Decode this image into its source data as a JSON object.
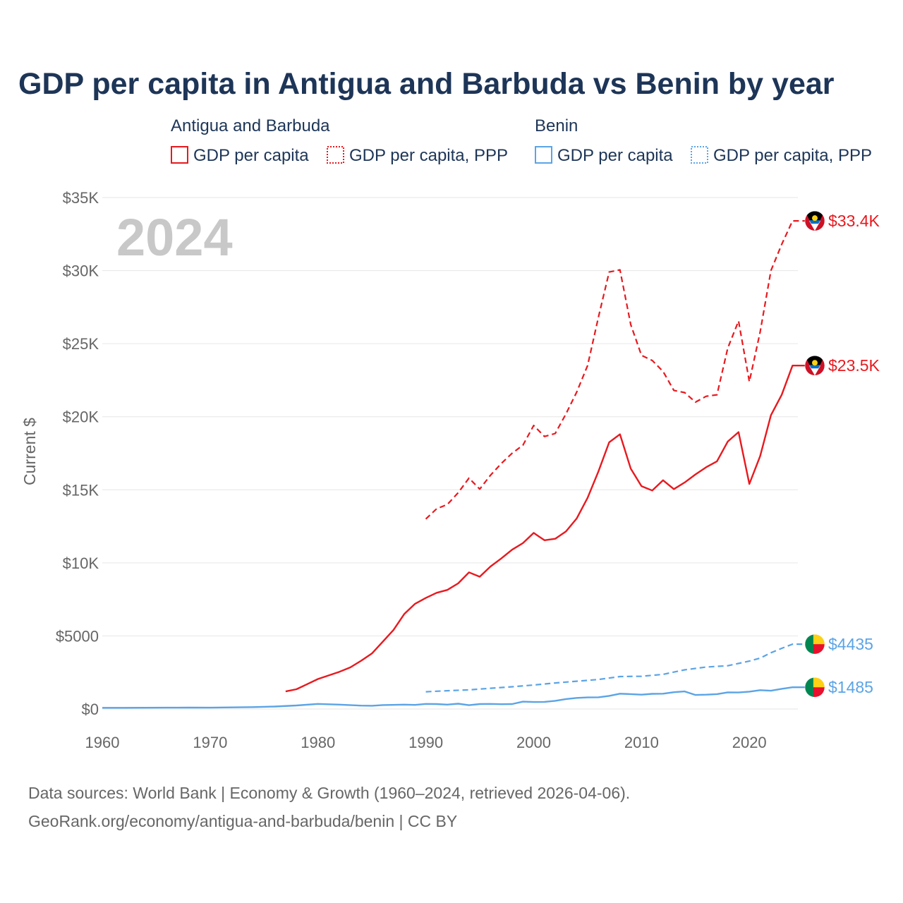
{
  "chart_data": {
    "type": "line",
    "title": "GDP per capita in Antigua and Barbuda vs Benin by year",
    "year_watermark": "2024",
    "ylabel": "Current $",
    "xlabel": "",
    "xlim": [
      1960,
      2024.5
    ],
    "ylim": [
      0,
      35000
    ],
    "x_ticks": [
      1960,
      1970,
      1980,
      1990,
      2000,
      2010,
      2020
    ],
    "x_tick_labels": [
      "1960",
      "1970",
      "1980",
      "1990",
      "2000",
      "2010",
      "2020"
    ],
    "y_ticks": [
      0,
      5000,
      10000,
      15000,
      20000,
      25000,
      30000,
      35000
    ],
    "y_tick_labels": [
      "$0",
      "$5000",
      "$10K",
      "$15K",
      "$20K",
      "$25K",
      "$30K",
      "$35K"
    ],
    "grid": true,
    "legend_groups": [
      {
        "name": "Antigua and Barbuda",
        "items": [
          "GDP per capita",
          "GDP per capita, PPP"
        ]
      },
      {
        "name": "Benin",
        "items": [
          "GDP per capita",
          "GDP per capita, PPP"
        ]
      }
    ],
    "colors": {
      "antigua": "#e8191e",
      "benin": "#5ba4e6"
    },
    "series": [
      {
        "name": "Antigua and Barbuda GDP per capita",
        "country": "antigua",
        "dash": "solid",
        "end_label": "$23.5K",
        "x": [
          1977,
          1978,
          1979,
          1980,
          1981,
          1982,
          1983,
          1984,
          1985,
          1986,
          1987,
          1988,
          1989,
          1990,
          1991,
          1992,
          1993,
          1994,
          1995,
          1996,
          1997,
          1998,
          1999,
          2000,
          2001,
          2002,
          2003,
          2004,
          2005,
          2006,
          2007,
          2008,
          2009,
          2010,
          2011,
          2012,
          2013,
          2014,
          2015,
          2016,
          2017,
          2018,
          2019,
          2020,
          2021,
          2022,
          2023,
          2024
        ],
        "values": [
          1200,
          1350,
          1700,
          2050,
          2300,
          2550,
          2850,
          3300,
          3800,
          4600,
          5400,
          6500,
          7200,
          7600,
          7950,
          8150,
          8600,
          9350,
          9050,
          9750,
          10300,
          10900,
          11350,
          12050,
          11550,
          11650,
          12150,
          13050,
          14450,
          16250,
          18250,
          18800,
          16450,
          15250,
          14950,
          15650,
          15050,
          15500,
          16050,
          16550,
          16950,
          18300,
          18950,
          15400,
          17300,
          20100,
          21500,
          23500
        ]
      },
      {
        "name": "Antigua and Barbuda GDP per capita, PPP",
        "country": "antigua",
        "dash": "dashed",
        "end_label": "$33.4K",
        "x": [
          1990,
          1991,
          1992,
          1993,
          1994,
          1995,
          1996,
          1997,
          1998,
          1999,
          2000,
          2001,
          2002,
          2003,
          2004,
          2005,
          2006,
          2007,
          2008,
          2009,
          2010,
          2011,
          2012,
          2013,
          2014,
          2015,
          2016,
          2017,
          2018,
          2019,
          2020,
          2021,
          2022,
          2023,
          2024
        ],
        "values": [
          13000,
          13700,
          14000,
          14800,
          15800,
          15050,
          16000,
          16800,
          17500,
          18050,
          19400,
          18650,
          18850,
          20200,
          21700,
          23500,
          26800,
          29900,
          30050,
          26300,
          24200,
          23850,
          23100,
          21800,
          21650,
          21000,
          21400,
          21500,
          24700,
          26550,
          22400,
          25800,
          30000,
          31800,
          33400
        ]
      },
      {
        "name": "Benin GDP per capita",
        "country": "benin",
        "dash": "solid",
        "end_label": "$1485",
        "x": [
          1960,
          1962,
          1964,
          1966,
          1968,
          1970,
          1972,
          1974,
          1976,
          1978,
          1980,
          1982,
          1984,
          1985,
          1986,
          1988,
          1989,
          1990,
          1991,
          1992,
          1993,
          1994,
          1995,
          1996,
          1997,
          1998,
          1999,
          2000,
          2001,
          2002,
          2003,
          2004,
          2005,
          2006,
          2007,
          2008,
          2009,
          2010,
          2011,
          2012,
          2013,
          2014,
          2015,
          2016,
          2017,
          2018,
          2019,
          2020,
          2021,
          2022,
          2023,
          2024
        ],
        "values": [
          80,
          82,
          85,
          90,
          95,
          92,
          110,
          130,
          170,
          240,
          350,
          300,
          230,
          220,
          270,
          300,
          280,
          350,
          340,
          300,
          360,
          260,
          340,
          350,
          330,
          340,
          500,
          480,
          490,
          560,
          680,
          760,
          790,
          800,
          900,
          1050,
          1020,
          980,
          1040,
          1050,
          1150,
          1200,
          960,
          980,
          1020,
          1140,
          1130,
          1190,
          1290,
          1250,
          1380,
          1485
        ]
      },
      {
        "name": "Benin GDP per capita, PPP",
        "country": "benin",
        "dash": "dashed",
        "end_label": "$4435",
        "x": [
          1990,
          1992,
          1994,
          1996,
          1998,
          2000,
          2002,
          2004,
          2006,
          2008,
          2010,
          2012,
          2014,
          2016,
          2018,
          2020,
          2021,
          2022,
          2023,
          2024
        ],
        "values": [
          1180,
          1250,
          1310,
          1420,
          1520,
          1640,
          1780,
          1900,
          2020,
          2220,
          2240,
          2370,
          2680,
          2870,
          2960,
          3280,
          3480,
          3850,
          4150,
          4435
        ]
      }
    ]
  },
  "footer": {
    "source_line": "Data sources: World Bank | Economy & Growth (1960–2024, retrieved 2026-04-06).",
    "url_line": "GeoRank.org/economy/antigua-and-barbuda/benin | CC BY"
  }
}
